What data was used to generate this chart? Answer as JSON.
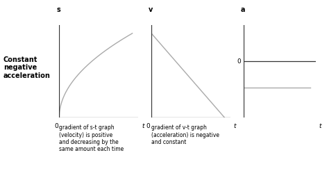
{
  "background_color": "#ffffff",
  "line_color": "#aaaaaa",
  "axis_color": "#333333",
  "text_color": "#000000",
  "left_label": "Constant\nnegative\nacceleration",
  "graph1": {
    "ylabel": "s",
    "xlabel_0": "0",
    "xlabel_t": "t",
    "caption": "gradient of s-t graph\n(velocity) is positive\nand decreasing by the\nsame amount each time"
  },
  "graph2": {
    "ylabel": "v",
    "xlabel_0": "0",
    "xlabel_t": "t",
    "caption": "gradient of v-t graph\n(acceleration) is negative\nand constant"
  },
  "graph3": {
    "ylabel": "a",
    "xlabel_0": "0",
    "xlabel_t": "t",
    "caption": ""
  },
  "figsize": [
    4.74,
    2.56
  ],
  "dpi": 100
}
